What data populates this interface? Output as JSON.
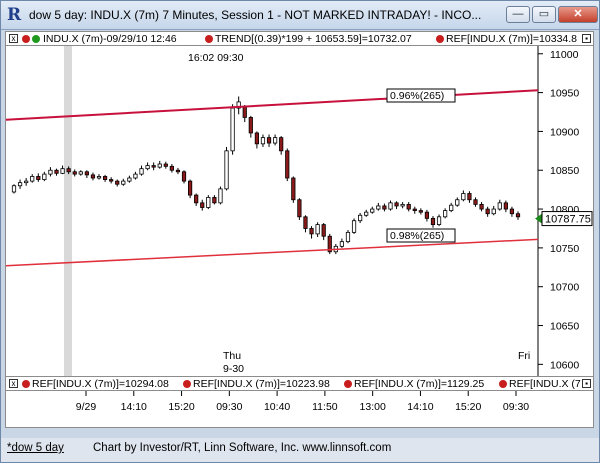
{
  "window": {
    "title": "dow 5 day: INDU.X (7m) 7 Minutes, Session 1 - NOT MARKED INTRADAY! - INCO...",
    "minimize_glyph": "—",
    "restore_glyph": "▭",
    "close_glyph": "✕"
  },
  "info_bar": {
    "symbol": "INDU.X (7m)-09/29/10 12:46",
    "trend": "TREND[(0.39)*199 + 10653.59]=10732.07",
    "ref": "REF[INDU.X (7m)]=10334.8"
  },
  "lower_bar": {
    "ref1": "REF[INDU.X (7m)]=10294.08",
    "ref2": "REF[INDU.X (7m)]=10223.98",
    "ref3": "REF[INDU.X (7m)]=1129.25",
    "ref4": "REF[INDU.X (7"
  },
  "chart_annotations": {
    "time_top": "16:02  09:30",
    "label_upper": "0.96%(265)",
    "label_lower": "0.98%(265)",
    "day_thu": "Thu",
    "day_thu_date": "9-30",
    "day_fri": "Fri",
    "last_price": "10787.75"
  },
  "colors": {
    "up_candle": "#ffffff",
    "down_candle": "#8b1a1a",
    "trend_upper": "#c8103c",
    "trend_lower": "#e0303c",
    "last_price_bg": "#ffffff",
    "last_price_arrow": "#1a8a1a"
  },
  "footer": {
    "tab": "*dow 5 day",
    "credit": "Chart by Investor/RT, Linn Software, Inc. www.linnsoft.com"
  },
  "chart_data": {
    "type": "candlestick",
    "y_ticks": [
      11000,
      10950,
      10900,
      10850,
      10800,
      10750,
      10700,
      10650,
      10600
    ],
    "ylim": [
      10585,
      11010
    ],
    "x_tick_labels": [
      "9/29",
      "14:10",
      "15:20",
      "09:30",
      "10:40",
      "11:50",
      "13:00",
      "14:10",
      "15:20",
      "09:30"
    ],
    "candles": [
      [
        10822,
        10830,
        10820,
        10832
      ],
      [
        10830,
        10834,
        10826,
        10838
      ],
      [
        10834,
        10836,
        10830,
        10840
      ],
      [
        10836,
        10842,
        10834,
        10845
      ],
      [
        10842,
        10838,
        10835,
        10846
      ],
      [
        10838,
        10845,
        10836,
        10848
      ],
      [
        10845,
        10850,
        10842,
        10854
      ],
      [
        10850,
        10846,
        10843,
        10852
      ],
      [
        10846,
        10852,
        10845,
        10856
      ],
      [
        10852,
        10848,
        10845,
        10855
      ],
      [
        10848,
        10845,
        10842,
        10851
      ],
      [
        10845,
        10848,
        10843,
        10850
      ],
      [
        10848,
        10844,
        10840,
        10850
      ],
      [
        10844,
        10840,
        10837,
        10847
      ],
      [
        10840,
        10842,
        10838,
        10845
      ],
      [
        10842,
        10838,
        10835,
        10844
      ],
      [
        10838,
        10836,
        10833,
        10841
      ],
      [
        10836,
        10832,
        10829,
        10838
      ],
      [
        10832,
        10836,
        10830,
        10839
      ],
      [
        10836,
        10840,
        10834,
        10843
      ],
      [
        10840,
        10845,
        10838,
        10848
      ],
      [
        10845,
        10852,
        10843,
        10856
      ],
      [
        10852,
        10856,
        10850,
        10860
      ],
      [
        10856,
        10854,
        10850,
        10860
      ],
      [
        10854,
        10858,
        10852,
        10862
      ],
      [
        10858,
        10855,
        10852,
        10861
      ],
      [
        10855,
        10850,
        10847,
        10858
      ],
      [
        10850,
        10848,
        10845,
        10853
      ],
      [
        10848,
        10836,
        10833,
        10850
      ],
      [
        10836,
        10818,
        10814,
        10838
      ],
      [
        10818,
        10808,
        10804,
        10820
      ],
      [
        10808,
        10802,
        10798,
        10812
      ],
      [
        10802,
        10815,
        10800,
        10818
      ],
      [
        10815,
        10808,
        10806,
        10818
      ],
      [
        10808,
        10826,
        10806,
        10829
      ],
      [
        10826,
        10875,
        10824,
        10880
      ],
      [
        10875,
        10930,
        10870,
        10935
      ],
      [
        10930,
        10938,
        10922,
        10945
      ],
      [
        10932,
        10918,
        10912,
        10934
      ],
      [
        10918,
        10898,
        10892,
        10920
      ],
      [
        10898,
        10884,
        10878,
        10900
      ],
      [
        10884,
        10892,
        10880,
        10896
      ],
      [
        10892,
        10885,
        10880,
        10896
      ],
      [
        10885,
        10892,
        10882,
        10896
      ],
      [
        10892,
        10875,
        10870,
        10894
      ],
      [
        10875,
        10840,
        10836,
        10878
      ],
      [
        10840,
        10812,
        10808,
        10842
      ],
      [
        10812,
        10790,
        10786,
        10814
      ],
      [
        10790,
        10775,
        10770,
        10792
      ],
      [
        10775,
        10768,
        10762,
        10778
      ],
      [
        10768,
        10780,
        10764,
        10783
      ],
      [
        10780,
        10765,
        10760,
        10782
      ],
      [
        10765,
        10745,
        10742,
        10768
      ],
      [
        10745,
        10752,
        10742,
        10755
      ],
      [
        10752,
        10758,
        10750,
        10762
      ],
      [
        10758,
        10770,
        10756,
        10773
      ],
      [
        10770,
        10785,
        10768,
        10788
      ],
      [
        10785,
        10792,
        10782,
        10795
      ],
      [
        10792,
        10796,
        10790,
        10799
      ],
      [
        10796,
        10800,
        10794,
        10803
      ],
      [
        10800,
        10804,
        10798,
        10808
      ],
      [
        10804,
        10800,
        10797,
        10807
      ],
      [
        10800,
        10808,
        10798,
        10811
      ],
      [
        10808,
        10804,
        10800,
        10810
      ],
      [
        10804,
        10806,
        10801,
        10809
      ],
      [
        10806,
        10800,
        10797,
        10809
      ],
      [
        10800,
        10798,
        10794,
        10803
      ],
      [
        10798,
        10796,
        10793,
        10801
      ],
      [
        10796,
        10788,
        10784,
        10799
      ],
      [
        10788,
        10780,
        10776,
        10791
      ],
      [
        10780,
        10790,
        10778,
        10793
      ],
      [
        10790,
        10798,
        10788,
        10801
      ],
      [
        10798,
        10805,
        10796,
        10808
      ],
      [
        10805,
        10812,
        10803,
        10815
      ],
      [
        10812,
        10820,
        10810,
        10824
      ],
      [
        10820,
        10812,
        10808,
        10823
      ],
      [
        10812,
        10806,
        10803,
        10815
      ],
      [
        10806,
        10800,
        10797,
        10809
      ],
      [
        10800,
        10794,
        10790,
        10803
      ],
      [
        10794,
        10800,
        10792,
        10804
      ],
      [
        10800,
        10808,
        10798,
        10812
      ],
      [
        10808,
        10800,
        10796,
        10811
      ],
      [
        10800,
        10794,
        10790,
        10803
      ],
      [
        10794,
        10790,
        10786,
        10797
      ]
    ],
    "trend_upper": {
      "start": 10915,
      "end": 10953
    },
    "trend_lower": {
      "start": 10727,
      "end": 10761
    },
    "last_price": 10787.75
  }
}
